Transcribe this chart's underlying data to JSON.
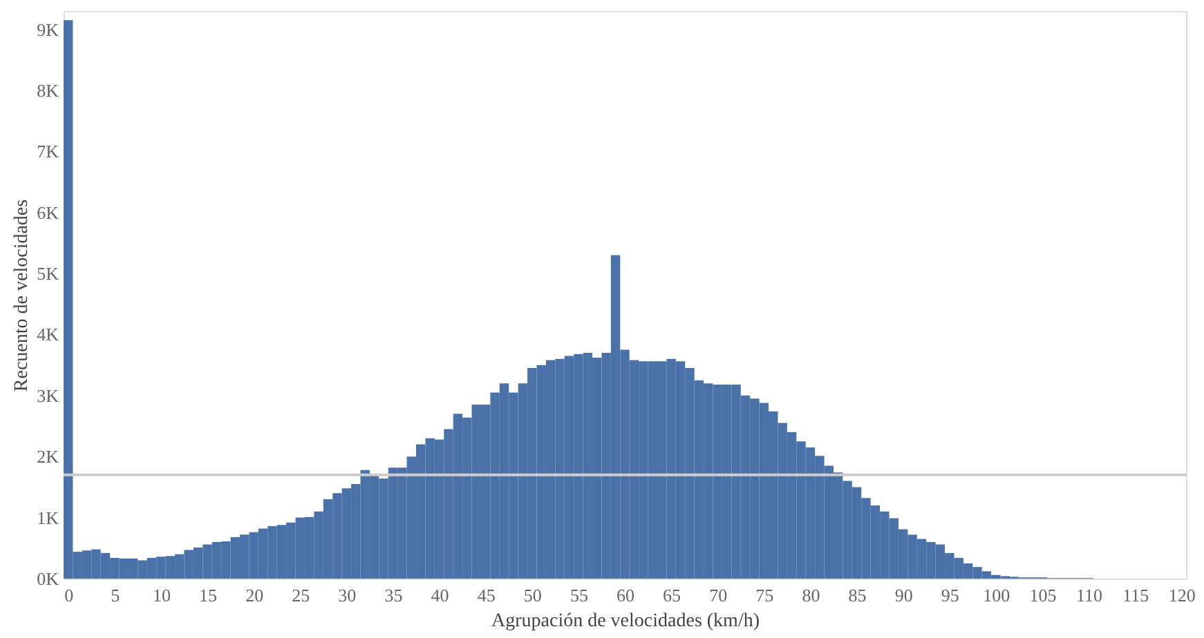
{
  "chart_data": {
    "type": "histogram",
    "xlabel": "Agrupación de velocidades (km/h)",
    "ylabel": "Recuento de velocidades",
    "color": "#4a72a8",
    "bins": [
      -0.5,
      0.5,
      1.5,
      2.5,
      3.5,
      4.5,
      5.5,
      6.5,
      7.5,
      8.5,
      9.5,
      10.5,
      11.5,
      12.5,
      13.5,
      14.5,
      15.5,
      16.5,
      17.5,
      18.5,
      19.5,
      20.5,
      21.5,
      22.5,
      23.5,
      24.5,
      25.5,
      26.5,
      27.5,
      28.5,
      29.5,
      30.5,
      31.5,
      32.5,
      33.5,
      34.5,
      35.5,
      36.5,
      37.5,
      38.5,
      39.5,
      40.5,
      41.5,
      42.5,
      43.5,
      44.5,
      45.5,
      46.5,
      47.5,
      48.5,
      49.5,
      50.5,
      51.5,
      52.5,
      53.5,
      54.5,
      55.5,
      56.5,
      57.5,
      58.5,
      59.5,
      60.5,
      61.5,
      62.5,
      63.5,
      64.5,
      65.5,
      66.5,
      67.5,
      68.5,
      69.5,
      70.5,
      71.5,
      72.5,
      73.5,
      74.5,
      75.5,
      76.5,
      77.5,
      78.5,
      79.5,
      80.5,
      81.5,
      82.5,
      83.5,
      84.5,
      85.5,
      86.5,
      87.5,
      88.5,
      89.5,
      90.5,
      91.5,
      92.5,
      93.5,
      94.5,
      95.5,
      96.5,
      97.5,
      98.5,
      99.5,
      100.5,
      101.5,
      102.5,
      103.5,
      104.5,
      105.5,
      106.5,
      107.5,
      108.5,
      109.5,
      110.5,
      111.5,
      112.5,
      113.5,
      114.5,
      115.5,
      116.5,
      117.5,
      118.5,
      119.5,
      120.5
    ],
    "values": [
      9150,
      440,
      460,
      480,
      420,
      340,
      330,
      330,
      300,
      340,
      360,
      370,
      400,
      470,
      510,
      560,
      600,
      610,
      680,
      720,
      760,
      820,
      860,
      880,
      920,
      1000,
      1010,
      1100,
      1300,
      1400,
      1480,
      1550,
      1780,
      1700,
      1640,
      1820,
      1820,
      2000,
      2200,
      2300,
      2280,
      2450,
      2700,
      2640,
      2850,
      2850,
      3050,
      3200,
      3050,
      3200,
      3450,
      3500,
      3580,
      3600,
      3650,
      3680,
      3700,
      3620,
      3700,
      5300,
      3750,
      3580,
      3560,
      3560,
      3560,
      3600,
      3560,
      3450,
      3250,
      3200,
      3180,
      3180,
      3180,
      3000,
      2950,
      2880,
      2740,
      2550,
      2400,
      2250,
      2150,
      2010,
      1850,
      1740,
      1600,
      1500,
      1320,
      1200,
      1100,
      990,
      810,
      720,
      650,
      600,
      560,
      420,
      340,
      250,
      190,
      120,
      60,
      40,
      30,
      20,
      20,
      20,
      10,
      10,
      10,
      10,
      10,
      0,
      0,
      0,
      0,
      0,
      0,
      0,
      0,
      0,
      0
    ],
    "xlim": [
      -0.5,
      120.5
    ],
    "xticks": [
      0,
      5,
      10,
      15,
      20,
      25,
      30,
      35,
      40,
      45,
      50,
      55,
      60,
      65,
      70,
      75,
      80,
      85,
      90,
      95,
      100,
      105,
      110,
      115,
      120
    ],
    "ylim": [
      0,
      9300
    ],
    "yticks": [
      {
        "value": 0,
        "label": "0K"
      },
      {
        "value": 1000,
        "label": "1K"
      },
      {
        "value": 2000,
        "label": "2K"
      },
      {
        "value": 3000,
        "label": "3K"
      },
      {
        "value": 4000,
        "label": "4K"
      },
      {
        "value": 5000,
        "label": "5K"
      },
      {
        "value": 6000,
        "label": "6K"
      },
      {
        "value": 7000,
        "label": "7K"
      },
      {
        "value": 8000,
        "label": "8K"
      },
      {
        "value": 9000,
        "label": "9K"
      }
    ],
    "ref_lines": [
      {
        "axis": "y",
        "value": 1700,
        "color": "#cccccc"
      }
    ],
    "grid": false
  }
}
